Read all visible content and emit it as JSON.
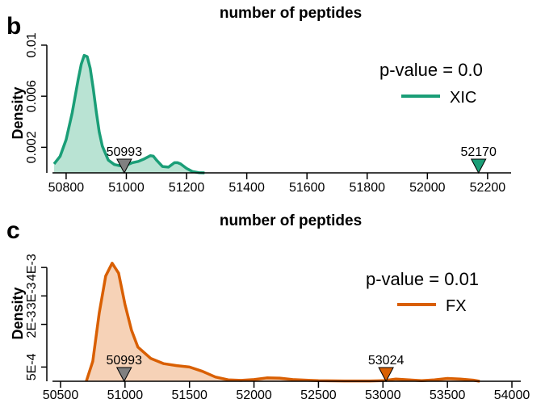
{
  "charts": [
    {
      "panel_label": "b",
      "title": "number of peptides",
      "type": "area",
      "ylabel": "Density",
      "xlim": [
        50760,
        52270
      ],
      "ylim": [
        0,
        0.0105
      ],
      "xticks": [
        "50800",
        "51000",
        "51200",
        "51400",
        "51600",
        "51800",
        "52000",
        "52200"
      ],
      "yticks": [
        "0.002",
        "0.006",
        "0.01"
      ],
      "color": "#1a9e77",
      "fill": "#b9e3d3",
      "series_name": "XIC",
      "pvalue_text": "p-value = 0.0",
      "chart_data": {
        "type": "area",
        "x": [
          50760,
          50780,
          50800,
          50820,
          50840,
          50850,
          50860,
          50870,
          50880,
          50890,
          50900,
          50910,
          50920,
          50940,
          50960,
          50980,
          51000,
          51020,
          51040,
          51060,
          51080,
          51090,
          51100,
          51120,
          51140,
          51160,
          51170,
          51180,
          51200,
          51220,
          51240,
          51260
        ],
        "y": [
          0.0007,
          0.0013,
          0.0026,
          0.0047,
          0.0073,
          0.0085,
          0.0092,
          0.0091,
          0.0082,
          0.0066,
          0.0048,
          0.0032,
          0.0021,
          0.001,
          0.00065,
          0.00055,
          0.0006,
          0.0008,
          0.0009,
          0.0011,
          0.00135,
          0.0013,
          0.001,
          0.0005,
          0.00045,
          0.0008,
          0.0008,
          0.0007,
          0.00035,
          0.0001,
          2e-05,
          0.0
        ]
      },
      "markers": [
        {
          "label": "50993",
          "x": 50993,
          "color": "#808080"
        },
        {
          "label": "52170",
          "x": 52170,
          "color": "#1a9e77"
        }
      ]
    },
    {
      "panel_label": "c",
      "title": "number of peptides",
      "type": "area",
      "ylabel": "Density",
      "xlim": [
        50450,
        54050
      ],
      "ylim": [
        0,
        0.0046
      ],
      "xticks": [
        "50500",
        "51000",
        "51500",
        "52000",
        "52500",
        "53000",
        "53500",
        "54000"
      ],
      "yticks": [
        "5E-4",
        "2E-3",
        "3E-3",
        "4E-3"
      ],
      "color": "#d95f02",
      "fill": "#f6d2b7",
      "series_name": "FX",
      "pvalue_text": "p-value = 0.01",
      "chart_data": {
        "type": "area",
        "x": [
          50700,
          50750,
          50800,
          50850,
          50900,
          50950,
          51000,
          51050,
          51100,
          51200,
          51300,
          51400,
          51500,
          51600,
          51700,
          51800,
          51900,
          52000,
          52100,
          52200,
          52300,
          52500,
          52700,
          52900,
          53000,
          53100,
          53200,
          53300,
          53400,
          53500,
          53600,
          53700,
          53750
        ],
        "y": [
          0.0,
          0.0007,
          0.0024,
          0.0037,
          0.00415,
          0.0038,
          0.0027,
          0.0018,
          0.0012,
          0.0008,
          0.00062,
          0.00055,
          0.0005,
          0.00035,
          0.00015,
          5e-05,
          3e-05,
          6e-05,
          0.00012,
          0.00011,
          6e-05,
          2e-05,
          1e-05,
          1e-05,
          2e-05,
          8e-05,
          5e-05,
          2e-05,
          5e-05,
          0.0001,
          8e-05,
          4e-05,
          0.0
        ]
      },
      "markers": [
        {
          "label": "50993",
          "x": 50993,
          "color": "#808080"
        },
        {
          "label": "53024",
          "x": 53024,
          "color": "#d95f02"
        }
      ]
    }
  ]
}
